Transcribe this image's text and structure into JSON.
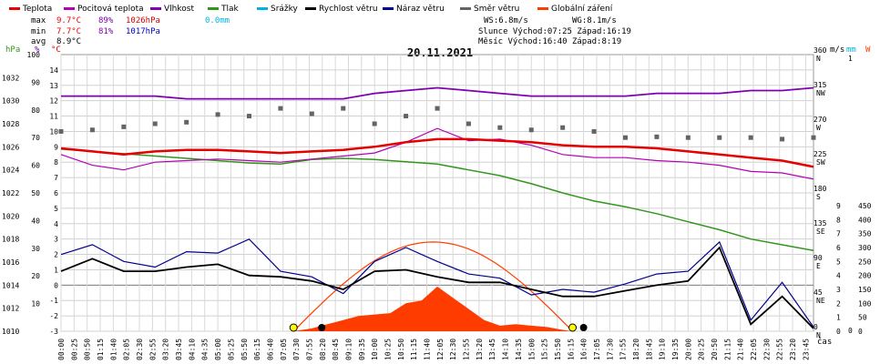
{
  "legend": [
    {
      "label": "Teplota",
      "color": "#e60000"
    },
    {
      "label": "Pocitová teplota",
      "color": "#b400b4"
    },
    {
      "label": "Vlhkost",
      "color": "#7d00b4"
    },
    {
      "label": "Tlak",
      "color": "#32961e"
    },
    {
      "label": "Srážky",
      "color": "#00b4dc"
    },
    {
      "label": "Rychlost větru",
      "color": "#000000"
    },
    {
      "label": "Náraz větru",
      "color": "#00008c"
    },
    {
      "label": "Směr větru",
      "color": "#646464"
    },
    {
      "label": "Globální záření",
      "color": "#ff3c00"
    }
  ],
  "stats": {
    "max_label": "max",
    "max_temp": "9.7°C",
    "max_hum": "89%",
    "max_pres": "1026hPa",
    "max_rain": "0.0mm",
    "min_label": "min",
    "min_temp": "7.7°C",
    "min_hum": "81%",
    "min_pres": "1017hPa",
    "avg_label": "avg",
    "avg_temp": "8.9°C",
    "ws": "WS:6.8m/s",
    "wg": "WG:8.1m/s",
    "sun": "Slunce Východ:07:25  Západ:16:19",
    "moon": "Měsíc  Východ:16:40  Západ:8:19"
  },
  "title": "20.11.2021",
  "axis_units": {
    "hpa": "hPa",
    "pct": "%",
    "degc": "°C",
    "ms": "m/s",
    "mm": "mm",
    "w": "W",
    "cas": "čas"
  },
  "chart_data": {
    "type": "line",
    "title": "20.11.2021",
    "xlabel": "čas",
    "x_ticks": [
      "00:00",
      "00:25",
      "00:50",
      "01:15",
      "01:40",
      "02:05",
      "02:30",
      "02:55",
      "03:20",
      "03:45",
      "04:10",
      "04:35",
      "05:00",
      "05:25",
      "05:50",
      "06:15",
      "06:40",
      "07:05",
      "07:30",
      "07:55",
      "08:20",
      "08:45",
      "09:10",
      "09:35",
      "10:00",
      "10:25",
      "10:50",
      "11:15",
      "11:40",
      "12:05",
      "12:30",
      "12:55",
      "13:20",
      "13:45",
      "14:10",
      "14:35",
      "15:00",
      "15:25",
      "15:50",
      "16:15",
      "16:40",
      "17:05",
      "17:30",
      "17:55",
      "18:20",
      "18:45",
      "19:10",
      "19:35",
      "20:00",
      "20:25",
      "20:50",
      "21:15",
      "21:40",
      "22:05",
      "22:30",
      "22:55",
      "23:20",
      "23:45"
    ],
    "axes": {
      "pressure_hpa": {
        "range": [
          1010,
          1034
        ],
        "ticks": [
          1010,
          1012,
          1014,
          1016,
          1018,
          1020,
          1022,
          1024,
          1026,
          1028,
          1030,
          1032
        ]
      },
      "percent": {
        "range": [
          0,
          100
        ],
        "ticks": [
          10,
          20,
          30,
          40,
          50,
          60,
          70,
          80,
          90,
          100
        ]
      },
      "temperature_c": {
        "range": [
          -3,
          15
        ],
        "ticks": [
          -3,
          -2,
          -1,
          0,
          1,
          2,
          3,
          4,
          5,
          6,
          7,
          8,
          9,
          10,
          11,
          12,
          13,
          14
        ]
      },
      "wind_direction": {
        "ticks": [
          {
            "v": 0,
            "lab": "0",
            "dir": "N"
          },
          {
            "v": 45,
            "lab": "45",
            "dir": "NE"
          },
          {
            "v": 90,
            "lab": "90",
            "dir": "E"
          },
          {
            "v": 135,
            "lab": "135",
            "dir": "SE"
          },
          {
            "v": 180,
            "lab": "180",
            "dir": "S"
          },
          {
            "v": 225,
            "lab": "225",
            "dir": "SW"
          },
          {
            "v": 270,
            "lab": "270",
            "dir": "W"
          },
          {
            "v": 315,
            "lab": "315",
            "dir": "NW"
          },
          {
            "v": 360,
            "lab": "360",
            "dir": "N"
          }
        ]
      },
      "wind_ms": {
        "range": [
          0,
          9
        ],
        "ticks": [
          0,
          1,
          2,
          3,
          4,
          5,
          6,
          7,
          8,
          9
        ]
      },
      "rain_mm": {
        "ticks": [
          0,
          1
        ]
      },
      "radiation_w": {
        "range": [
          0,
          450
        ],
        "ticks": [
          0,
          50,
          100,
          150,
          200,
          250,
          300,
          350,
          400,
          450
        ]
      }
    },
    "series": [
      {
        "name": "Teplota",
        "unit": "°C",
        "hours": [
          0,
          1,
          2,
          3,
          4,
          5,
          6,
          7,
          8,
          9,
          10,
          11,
          12,
          13,
          14,
          15,
          16,
          17,
          18,
          19,
          20,
          21,
          22,
          23,
          24
        ],
        "values": [
          8.9,
          8.7,
          8.5,
          8.7,
          8.8,
          8.8,
          8.7,
          8.6,
          8.7,
          8.8,
          9.0,
          9.3,
          9.5,
          9.5,
          9.4,
          9.3,
          9.1,
          9.0,
          9.0,
          8.9,
          8.7,
          8.5,
          8.3,
          8.1,
          7.7
        ]
      },
      {
        "name": "Pocitová teplota",
        "unit": "°C",
        "hours": [
          0,
          1,
          2,
          3,
          4,
          5,
          6,
          7,
          8,
          9,
          10,
          11,
          12,
          13,
          14,
          15,
          16,
          17,
          18,
          19,
          20,
          21,
          22,
          23,
          24
        ],
        "values": [
          8.5,
          7.8,
          7.5,
          8.0,
          8.1,
          8.2,
          8.1,
          8.0,
          8.2,
          8.4,
          8.6,
          9.3,
          10.2,
          9.4,
          9.5,
          9.1,
          8.5,
          8.3,
          8.3,
          8.1,
          8.0,
          7.8,
          7.4,
          7.3,
          6.9
        ]
      },
      {
        "name": "Vlhkost",
        "unit": "%",
        "hours": [
          0,
          1,
          2,
          3,
          4,
          5,
          6,
          7,
          8,
          9,
          10,
          11,
          12,
          13,
          14,
          15,
          16,
          17,
          18,
          19,
          20,
          21,
          22,
          23,
          24
        ],
        "values": [
          85,
          85,
          85,
          85,
          84,
          84,
          84,
          84,
          84,
          84,
          86,
          87,
          88,
          87,
          86,
          85,
          85,
          85,
          85,
          86,
          86,
          86,
          87,
          87,
          88
        ]
      },
      {
        "name": "Tlak",
        "unit": "hPa",
        "hours": [
          0,
          1,
          2,
          3,
          4,
          5,
          6,
          7,
          8,
          9,
          10,
          11,
          12,
          13,
          14,
          15,
          16,
          17,
          18,
          19,
          20,
          21,
          22,
          23,
          24
        ],
        "values": [
          1025.8,
          1025.6,
          1025.4,
          1025.2,
          1025.0,
          1024.8,
          1024.6,
          1024.5,
          1024.9,
          1025.0,
          1024.9,
          1024.7,
          1024.5,
          1024.0,
          1023.5,
          1022.8,
          1022.0,
          1021.3,
          1020.8,
          1020.2,
          1019.5,
          1018.8,
          1018.0,
          1017.5,
          1017.0
        ]
      },
      {
        "name": "Rychlost větru",
        "unit": "m/s",
        "hours": [
          0,
          1,
          2,
          3,
          4,
          5,
          6,
          7,
          8,
          9,
          10,
          11,
          12,
          13,
          14,
          15,
          16,
          17,
          18,
          19,
          20,
          21,
          22,
          23,
          24
        ],
        "values": [
          4.3,
          5.2,
          4.3,
          4.3,
          4.6,
          4.8,
          4.0,
          3.9,
          3.6,
          3.0,
          4.3,
          4.4,
          3.9,
          3.5,
          3.5,
          3.0,
          2.5,
          2.5,
          2.9,
          3.3,
          3.6,
          6.0,
          0.5,
          2.5,
          0.2
        ]
      },
      {
        "name": "Náraz větru",
        "unit": "m/s",
        "hours": [
          0,
          1,
          2,
          3,
          4,
          5,
          6,
          7,
          8,
          9,
          10,
          11,
          12,
          13,
          14,
          15,
          16,
          17,
          18,
          19,
          20,
          21,
          22,
          23,
          24
        ],
        "values": [
          5.5,
          6.2,
          5.0,
          4.6,
          5.7,
          5.6,
          6.6,
          4.3,
          3.9,
          2.7,
          5.0,
          6.0,
          5.0,
          4.1,
          3.8,
          2.6,
          3.0,
          2.8,
          3.4,
          4.1,
          4.3,
          6.4,
          0.8,
          3.5,
          0.3
        ]
      },
      {
        "name": "Globální záření",
        "unit": "W",
        "hours": [
          7.4,
          8,
          8.5,
          9,
          9.5,
          10,
          10.5,
          11,
          11.5,
          12,
          12.5,
          13,
          13.5,
          14,
          14.5,
          15,
          15.5,
          16,
          16.3
        ],
        "values": [
          0,
          10,
          25,
          40,
          55,
          60,
          65,
          100,
          110,
          160,
          120,
          80,
          40,
          20,
          25,
          20,
          15,
          5,
          0
        ]
      },
      {
        "name": "Směr větru",
        "unit": "°",
        "hours": [
          0,
          1,
          2,
          3,
          4,
          5,
          6,
          7,
          8,
          9,
          10,
          11,
          12,
          13,
          14,
          15,
          16,
          17,
          18,
          19,
          20,
          21,
          22,
          23,
          24
        ],
        "values": [
          260,
          262,
          266,
          270,
          272,
          282,
          280,
          290,
          283,
          290,
          270,
          280,
          290,
          270,
          265,
          262,
          265,
          260,
          252,
          253,
          252,
          252,
          252,
          250,
          252
        ]
      }
    ],
    "annotations": {
      "sunrise": "07:25",
      "sunset": "16:19",
      "moonrise": "16:40",
      "moonset": "8:19"
    }
  }
}
